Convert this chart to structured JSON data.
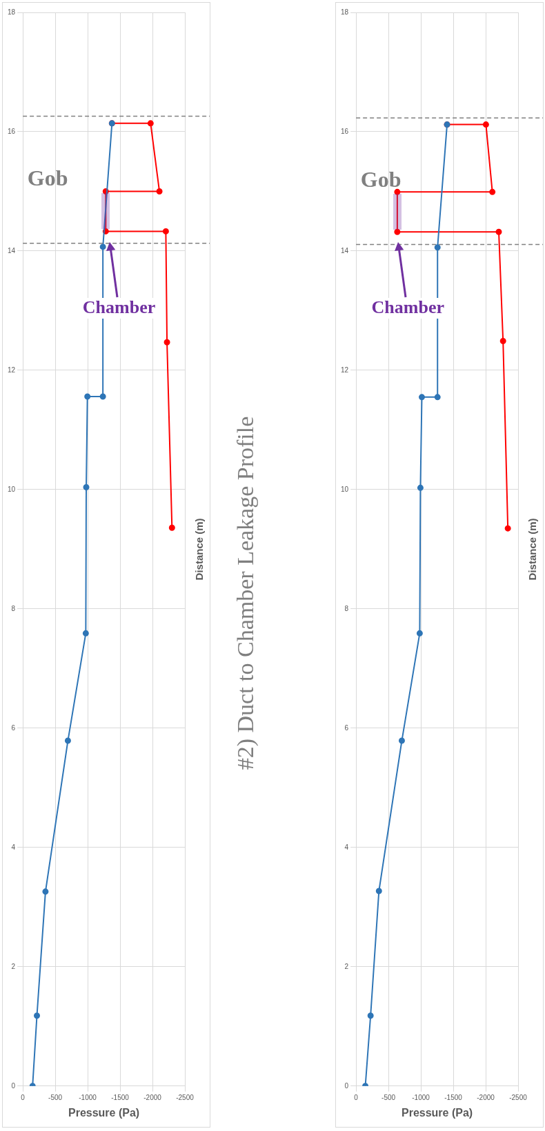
{
  "chart_data": [
    {
      "type": "line",
      "xlabel": "Pressure (Pa)",
      "ylabel": "Distance (m)",
      "xlim": [
        0,
        -2500
      ],
      "xticks": [
        0,
        -500,
        -1000,
        -1500,
        -2000,
        -2500
      ],
      "ylim": [
        0,
        18
      ],
      "yticks": [
        0,
        2,
        4,
        6,
        8,
        10,
        12,
        14,
        16,
        18
      ],
      "grid": true,
      "marker": "circle",
      "line_style": "solid",
      "series": [
        {
          "color": "#2e75b6",
          "x": [
            -150,
            -217,
            -349,
            -695,
            -971,
            -978,
            -996,
            -1235,
            -1235,
            -1375
          ],
          "values": [
            0,
            1.18,
            3.26,
            5.79,
            7.59,
            10.04,
            11.56,
            11.56,
            14.07,
            16.14
          ]
        },
        {
          "color": "#ff0000",
          "x": [
            -2301,
            -2224,
            -2206,
            -1279,
            -1279,
            -2107,
            -1971,
            -1375
          ],
          "values": [
            9.36,
            12.47,
            14.33,
            14.33,
            15.0,
            15.0,
            16.14,
            16.14
          ]
        }
      ],
      "ref_lines": [
        {
          "axis": "y",
          "value": 14.13,
          "color": "#808080",
          "line_style": "dashed"
        },
        {
          "axis": "y",
          "value": 16.26,
          "color": "#808080",
          "line_style": "dashed"
        }
      ],
      "annotations": [
        "Gob",
        {
          "text": "Chamber",
          "x": -1335,
          "y": 14.15
        }
      ]
    },
    {
      "type": "line",
      "title": "#2) Duct to Chamber Leakage Profile",
      "xlabel": "Pressure (Pa)",
      "ylabel": "Distance (m)",
      "xlim": [
        0,
        -2500
      ],
      "xticks": [
        0,
        -500,
        -1000,
        -1500,
        -2000,
        -2500
      ],
      "ylim": [
        0,
        18
      ],
      "yticks": [
        0,
        2,
        4,
        6,
        8,
        10,
        12,
        14,
        16,
        18
      ],
      "grid": true,
      "marker": "circle",
      "line_style": "solid",
      "series": [
        {
          "color": "#2e75b6",
          "x": [
            -143,
            -224,
            -353,
            -706,
            -982,
            -993,
            -1015,
            -1257,
            -1257,
            -1404
          ],
          "values": [
            0,
            1.18,
            3.27,
            5.79,
            7.59,
            10.03,
            11.55,
            11.55,
            14.06,
            16.12
          ]
        },
        {
          "color": "#ff0000",
          "x": [
            -2342,
            -2268,
            -2202,
            -636,
            -636,
            -2103,
            -2004,
            -1404
          ],
          "values": [
            9.35,
            12.49,
            14.32,
            14.32,
            14.99,
            14.99,
            16.12,
            16.12
          ]
        }
      ],
      "ref_lines": [
        {
          "axis": "y",
          "value": 14.11,
          "color": "#808080",
          "line_style": "dashed"
        },
        {
          "axis": "y",
          "value": 16.23,
          "color": "#808080",
          "line_style": "dashed"
        }
      ],
      "annotations": [
        "Gob",
        {
          "text": "Chamber",
          "x": -651,
          "y": 14.15
        }
      ]
    }
  ]
}
